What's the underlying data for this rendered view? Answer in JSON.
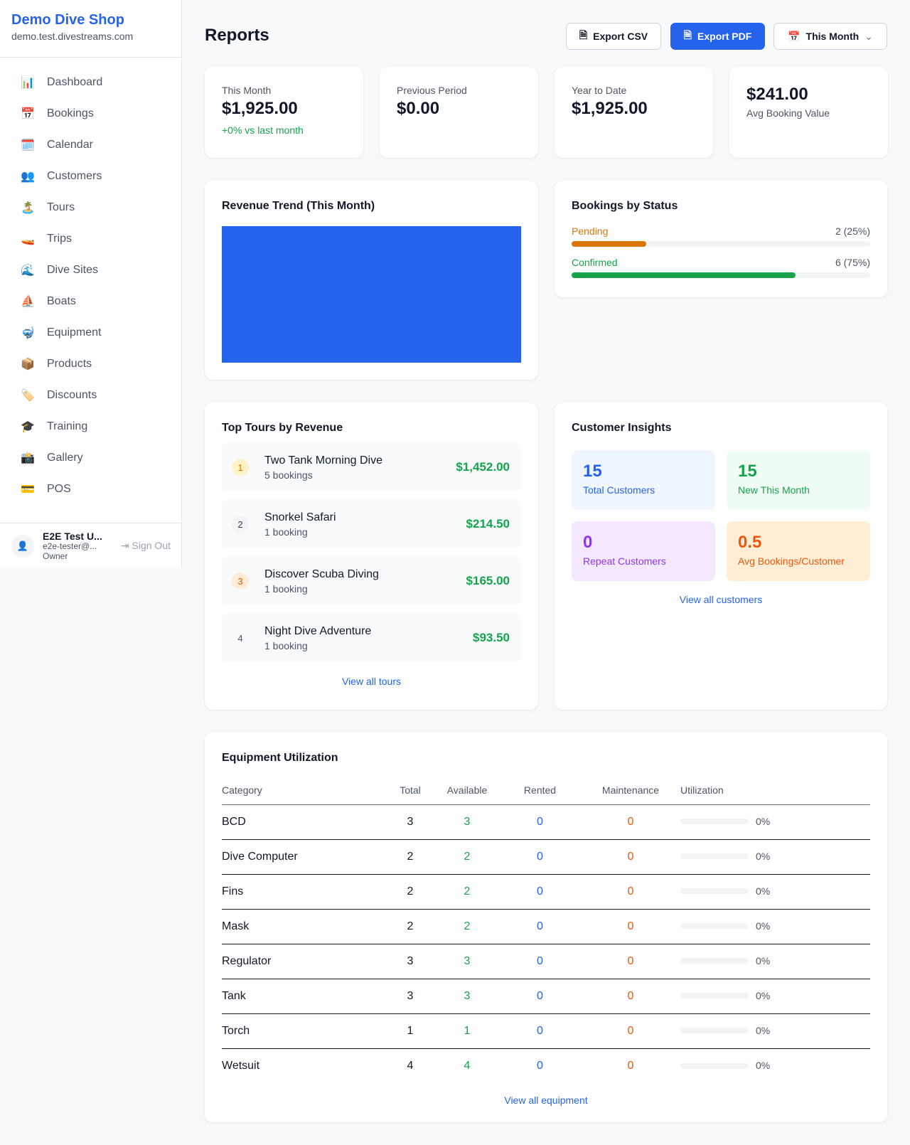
{
  "sidebar": {
    "brand": "Demo Dive Shop",
    "domain": "demo.test.divestreams.com",
    "items": [
      {
        "icon": "📊",
        "label": "Dashboard"
      },
      {
        "icon": "📅",
        "label": "Bookings"
      },
      {
        "icon": "🗓️",
        "label": "Calendar"
      },
      {
        "icon": "👥",
        "label": "Customers"
      },
      {
        "icon": "🏝️",
        "label": "Tours"
      },
      {
        "icon": "🚤",
        "label": "Trips"
      },
      {
        "icon": "🌊",
        "label": "Dive Sites"
      },
      {
        "icon": "⛵",
        "label": "Boats"
      },
      {
        "icon": "🤿",
        "label": "Equipment"
      },
      {
        "icon": "📦",
        "label": "Products"
      },
      {
        "icon": "🏷️",
        "label": "Discounts"
      },
      {
        "icon": "🎓",
        "label": "Training"
      },
      {
        "icon": "📸",
        "label": "Gallery"
      },
      {
        "icon": "💳",
        "label": "POS"
      }
    ],
    "user": {
      "name": "E2E Test U...",
      "email": "e2e-tester@...",
      "role": "Owner",
      "sign_out": "Sign Out"
    }
  },
  "header": {
    "title": "Reports",
    "export_csv": "Export CSV",
    "export_pdf": "Export PDF",
    "period": "This Month"
  },
  "stats": [
    {
      "label": "This Month",
      "value": "$1,925.00",
      "sub": "+0% vs last month"
    },
    {
      "label": "Previous Period",
      "value": "$0.00"
    },
    {
      "label": "Year to Date",
      "value": "$1,925.00"
    },
    {
      "value": "$241.00",
      "label": "Avg Booking Value"
    }
  ],
  "revenue_trend": {
    "title": "Revenue Trend (This Month)",
    "color": "#2563eb"
  },
  "bookings_status": {
    "title": "Bookings by Status",
    "items": [
      {
        "label": "Pending",
        "value": "2 (25%)",
        "percent": 25,
        "color": "#d97706"
      },
      {
        "label": "Confirmed",
        "value": "6 (75%)",
        "percent": 75,
        "color": "#16a34a"
      }
    ]
  },
  "top_tours": {
    "title": "Top Tours by Revenue",
    "items": [
      {
        "rank": "1",
        "name": "Two Tank Morning Dive",
        "bookings": "5 bookings",
        "revenue": "$1,452.00"
      },
      {
        "rank": "2",
        "name": "Snorkel Safari",
        "bookings": "1 booking",
        "revenue": "$214.50"
      },
      {
        "rank": "3",
        "name": "Discover Scuba Diving",
        "bookings": "1 booking",
        "revenue": "$165.00"
      },
      {
        "rank": "4",
        "name": "Night Dive Adventure",
        "bookings": "1 booking",
        "revenue": "$93.50"
      }
    ],
    "link": "View all tours"
  },
  "customer_insights": {
    "title": "Customer Insights",
    "items": [
      {
        "value": "15",
        "label": "Total Customers",
        "color": "#2563eb",
        "bg": "#eff6ff"
      },
      {
        "value": "15",
        "label": "New This Month",
        "color": "#16a34a",
        "bg": "#f0fdf4"
      },
      {
        "value": "0",
        "label": "Repeat Customers",
        "color": "#9333ea",
        "bg": "#f3e8ff"
      },
      {
        "value": "0.5",
        "label": "Avg Bookings/Customer",
        "color": "#ea580c",
        "bg": "#ffedd5"
      }
    ],
    "link": "View all customers"
  },
  "equipment": {
    "title": "Equipment Utilization",
    "columns": [
      "Category",
      "Total",
      "Available",
      "Rented",
      "Maintenance",
      "Utilization"
    ],
    "rows": [
      [
        "BCD",
        "3",
        "3",
        "0",
        "0",
        "0%"
      ],
      [
        "Dive Computer",
        "2",
        "2",
        "0",
        "0",
        "0%"
      ],
      [
        "Fins",
        "2",
        "2",
        "0",
        "0",
        "0%"
      ],
      [
        "Mask",
        "2",
        "2",
        "0",
        "0",
        "0%"
      ],
      [
        "Regulator",
        "3",
        "3",
        "0",
        "0",
        "0%"
      ],
      [
        "Tank",
        "3",
        "3",
        "0",
        "0",
        "0%"
      ],
      [
        "Torch",
        "1",
        "1",
        "0",
        "0",
        "0%"
      ],
      [
        "Wetsuit",
        "4",
        "4",
        "0",
        "0",
        "0%"
      ]
    ],
    "link": "View all equipment"
  }
}
